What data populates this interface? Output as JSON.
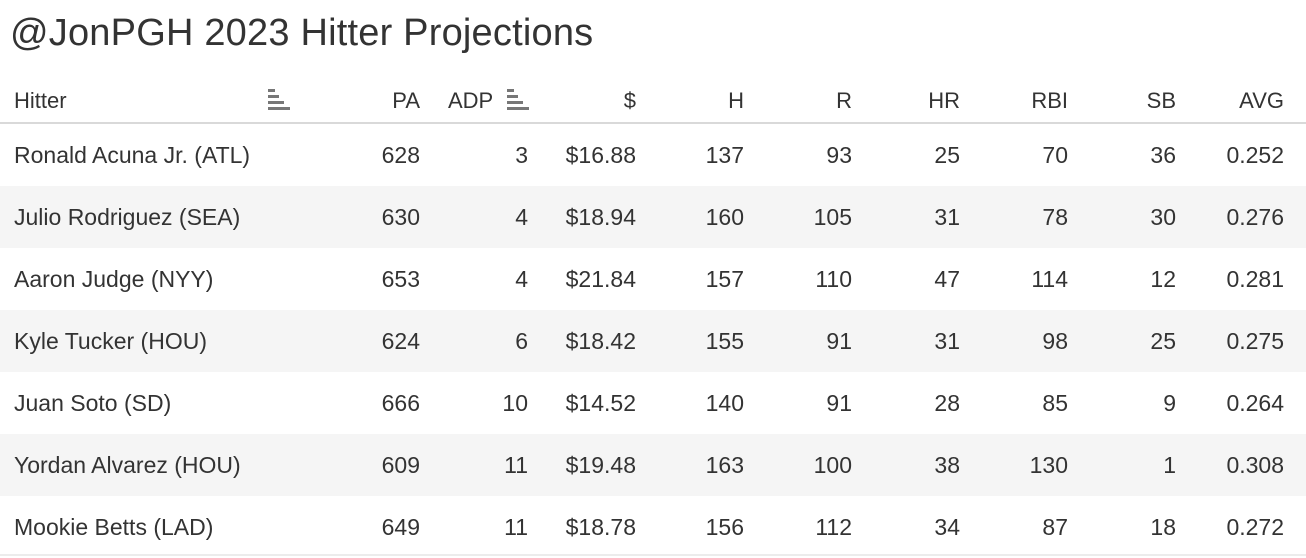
{
  "title": "@JonPGH 2023 Hitter Projections",
  "columns": {
    "hitter": "Hitter",
    "pa": "PA",
    "adp": "ADP",
    "dollar": "$",
    "h": "H",
    "r": "R",
    "hr": "HR",
    "rbi": "RBI",
    "sb": "SB",
    "avg": "AVG"
  },
  "sort_icons": {
    "hitter": "sort-descending-icon",
    "adp": "sort-ascending-icon"
  },
  "colors": {
    "stripe": "#f5f5f5",
    "text": "#333333",
    "rule": "#d9d9d9"
  },
  "rows": [
    {
      "hitter": "Ronald Acuna Jr. (ATL)",
      "pa": "628",
      "adp": "3",
      "dollar": "$16.88",
      "h": "137",
      "r": "93",
      "hr": "25",
      "rbi": "70",
      "sb": "36",
      "avg": "0.252"
    },
    {
      "hitter": "Julio Rodriguez (SEA)",
      "pa": "630",
      "adp": "4",
      "dollar": "$18.94",
      "h": "160",
      "r": "105",
      "hr": "31",
      "rbi": "78",
      "sb": "30",
      "avg": "0.276"
    },
    {
      "hitter": "Aaron Judge (NYY)",
      "pa": "653",
      "adp": "4",
      "dollar": "$21.84",
      "h": "157",
      "r": "110",
      "hr": "47",
      "rbi": "114",
      "sb": "12",
      "avg": "0.281"
    },
    {
      "hitter": "Kyle Tucker (HOU)",
      "pa": "624",
      "adp": "6",
      "dollar": "$18.42",
      "h": "155",
      "r": "91",
      "hr": "31",
      "rbi": "98",
      "sb": "25",
      "avg": "0.275"
    },
    {
      "hitter": "Juan Soto (SD)",
      "pa": "666",
      "adp": "10",
      "dollar": "$14.52",
      "h": "140",
      "r": "91",
      "hr": "28",
      "rbi": "85",
      "sb": "9",
      "avg": "0.264"
    },
    {
      "hitter": "Yordan Alvarez (HOU)",
      "pa": "609",
      "adp": "11",
      "dollar": "$19.48",
      "h": "163",
      "r": "100",
      "hr": "38",
      "rbi": "130",
      "sb": "1",
      "avg": "0.308"
    },
    {
      "hitter": "Mookie Betts (LAD)",
      "pa": "649",
      "adp": "11",
      "dollar": "$18.78",
      "h": "156",
      "r": "112",
      "hr": "34",
      "rbi": "87",
      "sb": "18",
      "avg": "0.272"
    }
  ]
}
